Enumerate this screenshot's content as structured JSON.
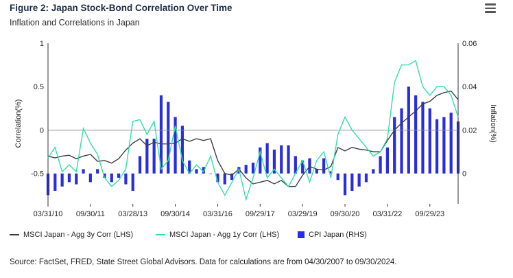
{
  "header": {
    "title": "Figure 2: Japan Stock-Bond Correlation Over Time",
    "subtitle": "Inflation and Correlations in Japan"
  },
  "menu_icon": "hamburger-menu-icon",
  "source": "Source: FactSet, FRED, State Street Global Advisors. Data for calculations are from 04/30/2007 to 09/30/2024.",
  "colors": {
    "corr3y": "#3a3f3c",
    "corr1y": "#2fe0a8",
    "cpi": "#2a2ce0",
    "zero_line": "#888888"
  },
  "chart_data": {
    "type": "line",
    "ylabel": "Correlation(%)",
    "ylabel_right": "Inflation(%)",
    "ylim": [
      -0.85,
      1.0
    ],
    "ylim_right": [
      -0.014,
      0.06
    ],
    "yticks": [
      {
        "value": 1,
        "label": "1"
      },
      {
        "value": 0.5,
        "label": "0.5"
      },
      {
        "value": 0,
        "label": "0"
      },
      {
        "value": -0.5,
        "label": "-0.5"
      }
    ],
    "yticks_right": [
      {
        "value": 0.06,
        "label": "0.06"
      },
      {
        "value": 0.04,
        "label": "0.04"
      },
      {
        "value": 0.02,
        "label": "0.02"
      },
      {
        "value": 0,
        "label": "0"
      }
    ],
    "x_range": [
      2010.25,
      2024.75
    ],
    "xticks": [
      {
        "x": 2010.25,
        "label": "03/31/10"
      },
      {
        "x": 2011.75,
        "label": "09/30/11"
      },
      {
        "x": 2013.25,
        "label": "03/28/13"
      },
      {
        "x": 2014.75,
        "label": "09/30/14"
      },
      {
        "x": 2016.25,
        "label": "03/31/16"
      },
      {
        "x": 2017.75,
        "label": "09/29/17"
      },
      {
        "x": 2019.25,
        "label": "03/29/19"
      },
      {
        "x": 2020.75,
        "label": "09/30/20"
      },
      {
        "x": 2022.25,
        "label": "03/31/22"
      },
      {
        "x": 2023.75,
        "label": "09/29/23"
      }
    ],
    "legend": [
      {
        "name": "MSCI Japan - Agg 3y Corr (LHS)",
        "kind": "line",
        "color": "#3a3f3c"
      },
      {
        "name": "MSCI Japan - Agg 1y Corr (LHS)",
        "kind": "line",
        "color": "#2fe0a8"
      },
      {
        "name": "CPI Japan (RHS)",
        "kind": "box",
        "color": "#2a2ce0"
      }
    ],
    "series": [
      {
        "name": "MSCI Japan - Agg 3y Corr (LHS)",
        "axis": "left",
        "points": [
          [
            2010.25,
            -0.3
          ],
          [
            2010.5,
            -0.32
          ],
          [
            2010.75,
            -0.3
          ],
          [
            2011.0,
            -0.29
          ],
          [
            2011.25,
            -0.33
          ],
          [
            2011.5,
            -0.3
          ],
          [
            2011.75,
            -0.28
          ],
          [
            2012.0,
            -0.36
          ],
          [
            2012.25,
            -0.35
          ],
          [
            2012.5,
            -0.38
          ],
          [
            2012.75,
            -0.33
          ],
          [
            2013.0,
            -0.23
          ],
          [
            2013.25,
            -0.15
          ],
          [
            2013.5,
            -0.1
          ],
          [
            2013.75,
            -0.18
          ],
          [
            2014.0,
            -0.14
          ],
          [
            2014.25,
            -0.16
          ],
          [
            2014.5,
            -0.16
          ],
          [
            2014.75,
            -0.15
          ],
          [
            2015.0,
            -0.1
          ],
          [
            2015.25,
            -0.13
          ],
          [
            2015.5,
            -0.1
          ],
          [
            2015.75,
            -0.12
          ],
          [
            2016.0,
            -0.1
          ],
          [
            2016.25,
            -0.35
          ],
          [
            2016.5,
            -0.5
          ],
          [
            2016.75,
            -0.52
          ],
          [
            2017.0,
            -0.45
          ],
          [
            2017.25,
            -0.55
          ],
          [
            2017.5,
            -0.62
          ],
          [
            2017.75,
            -0.6
          ],
          [
            2018.0,
            -0.58
          ],
          [
            2018.25,
            -0.62
          ],
          [
            2018.5,
            -0.58
          ],
          [
            2018.75,
            -0.65
          ],
          [
            2019.0,
            -0.65
          ],
          [
            2019.25,
            -0.52
          ],
          [
            2019.5,
            -0.42
          ],
          [
            2019.75,
            -0.45
          ],
          [
            2020.0,
            -0.46
          ],
          [
            2020.25,
            -0.42
          ],
          [
            2020.5,
            -0.2
          ],
          [
            2020.75,
            -0.24
          ],
          [
            2021.0,
            -0.2
          ],
          [
            2021.25,
            -0.22
          ],
          [
            2021.5,
            -0.23
          ],
          [
            2021.75,
            -0.25
          ],
          [
            2022.0,
            -0.25
          ],
          [
            2022.25,
            -0.12
          ],
          [
            2022.5,
            0.0
          ],
          [
            2022.75,
            0.08
          ],
          [
            2023.0,
            0.15
          ],
          [
            2023.25,
            0.22
          ],
          [
            2023.5,
            0.3
          ],
          [
            2023.75,
            0.33
          ],
          [
            2024.0,
            0.4
          ],
          [
            2024.25,
            0.43
          ],
          [
            2024.5,
            0.45
          ],
          [
            2024.75,
            0.35
          ]
        ]
      },
      {
        "name": "MSCI Japan - Agg 1y Corr (LHS)",
        "axis": "left",
        "points": [
          [
            2010.25,
            -0.32
          ],
          [
            2010.5,
            -0.2
          ],
          [
            2010.75,
            -0.48
          ],
          [
            2011.0,
            -0.4
          ],
          [
            2011.25,
            -0.48
          ],
          [
            2011.5,
            0.02
          ],
          [
            2011.75,
            -0.15
          ],
          [
            2012.0,
            -0.28
          ],
          [
            2012.25,
            -0.55
          ],
          [
            2012.5,
            -0.65
          ],
          [
            2012.75,
            -0.58
          ],
          [
            2013.0,
            -0.45
          ],
          [
            2013.25,
            0.1
          ],
          [
            2013.5,
            0.12
          ],
          [
            2013.75,
            -0.05
          ],
          [
            2014.0,
            0.1
          ],
          [
            2014.25,
            -0.45
          ],
          [
            2014.5,
            -0.35
          ],
          [
            2014.75,
            0.05
          ],
          [
            2015.0,
            -0.35
          ],
          [
            2015.25,
            -0.5
          ],
          [
            2015.5,
            -0.4
          ],
          [
            2015.75,
            -0.48
          ],
          [
            2016.0,
            -0.3
          ],
          [
            2016.25,
            -0.6
          ],
          [
            2016.5,
            -0.75
          ],
          [
            2016.75,
            -0.6
          ],
          [
            2017.0,
            -0.45
          ],
          [
            2017.25,
            -0.8
          ],
          [
            2017.5,
            -0.55
          ],
          [
            2017.75,
            -0.25
          ],
          [
            2018.0,
            -0.55
          ],
          [
            2018.25,
            -0.45
          ],
          [
            2018.5,
            -0.55
          ],
          [
            2018.75,
            -0.65
          ],
          [
            2019.0,
            -0.5
          ],
          [
            2019.25,
            -0.35
          ],
          [
            2019.5,
            -0.6
          ],
          [
            2019.75,
            -0.35
          ],
          [
            2020.0,
            -0.25
          ],
          [
            2020.25,
            -0.55
          ],
          [
            2020.5,
            -0.05
          ],
          [
            2020.75,
            0.15
          ],
          [
            2021.0,
            0.0
          ],
          [
            2021.25,
            -0.1
          ],
          [
            2021.5,
            -0.2
          ],
          [
            2021.75,
            -0.3
          ],
          [
            2022.0,
            -0.25
          ],
          [
            2022.25,
            -0.1
          ],
          [
            2022.5,
            0.55
          ],
          [
            2022.75,
            0.75
          ],
          [
            2023.0,
            0.75
          ],
          [
            2023.25,
            0.8
          ],
          [
            2023.5,
            0.5
          ],
          [
            2023.75,
            0.4
          ],
          [
            2024.0,
            0.5
          ],
          [
            2024.25,
            0.5
          ],
          [
            2024.5,
            0.4
          ],
          [
            2024.75,
            0.15
          ]
        ]
      },
      {
        "name": "CPI Japan (RHS)",
        "axis": "right",
        "kind": "bar",
        "points": [
          [
            2010.25,
            -0.01
          ],
          [
            2010.5,
            -0.008
          ],
          [
            2010.75,
            -0.006
          ],
          [
            2011.0,
            -0.004
          ],
          [
            2011.25,
            -0.005
          ],
          [
            2011.5,
            0.002
          ],
          [
            2011.75,
            -0.004
          ],
          [
            2012.0,
            0.002
          ],
          [
            2012.25,
            -0.002
          ],
          [
            2012.5,
            -0.004
          ],
          [
            2012.75,
            -0.002
          ],
          [
            2013.0,
            -0.005
          ],
          [
            2013.25,
            -0.008
          ],
          [
            2013.5,
            0.008
          ],
          [
            2013.75,
            0.016
          ],
          [
            2014.0,
            0.016
          ],
          [
            2014.25,
            0.036
          ],
          [
            2014.5,
            0.033
          ],
          [
            2014.75,
            0.026
          ],
          [
            2015.0,
            0.022
          ],
          [
            2015.25,
            0.006
          ],
          [
            2015.5,
            0.002
          ],
          [
            2015.75,
            0.003
          ],
          [
            2016.0,
            0.0
          ],
          [
            2016.25,
            -0.004
          ],
          [
            2016.5,
            -0.005
          ],
          [
            2016.75,
            -0.003
          ],
          [
            2017.0,
            0.003
          ],
          [
            2017.25,
            0.004
          ],
          [
            2017.5,
            0.005
          ],
          [
            2017.75,
            0.012
          ],
          [
            2018.0,
            0.014
          ],
          [
            2018.25,
            0.011
          ],
          [
            2018.5,
            0.013
          ],
          [
            2018.75,
            0.013
          ],
          [
            2019.0,
            0.008
          ],
          [
            2019.25,
            0.006
          ],
          [
            2019.5,
            0.007
          ],
          [
            2019.75,
            0.002
          ],
          [
            2020.0,
            0.007
          ],
          [
            2020.25,
            0.001
          ],
          [
            2020.5,
            -0.003
          ],
          [
            2020.75,
            -0.01
          ],
          [
            2021.0,
            -0.008
          ],
          [
            2021.25,
            -0.006
          ],
          [
            2021.5,
            -0.004
          ],
          [
            2021.75,
            0.002
          ],
          [
            2022.0,
            0.008
          ],
          [
            2022.25,
            0.012
          ],
          [
            2022.5,
            0.026
          ],
          [
            2022.75,
            0.03
          ],
          [
            2023.0,
            0.04
          ],
          [
            2023.25,
            0.036
          ],
          [
            2023.5,
            0.033
          ],
          [
            2023.75,
            0.03
          ],
          [
            2024.0,
            0.025
          ],
          [
            2024.25,
            0.026
          ],
          [
            2024.5,
            0.028
          ],
          [
            2024.75,
            0.024
          ]
        ]
      }
    ]
  }
}
